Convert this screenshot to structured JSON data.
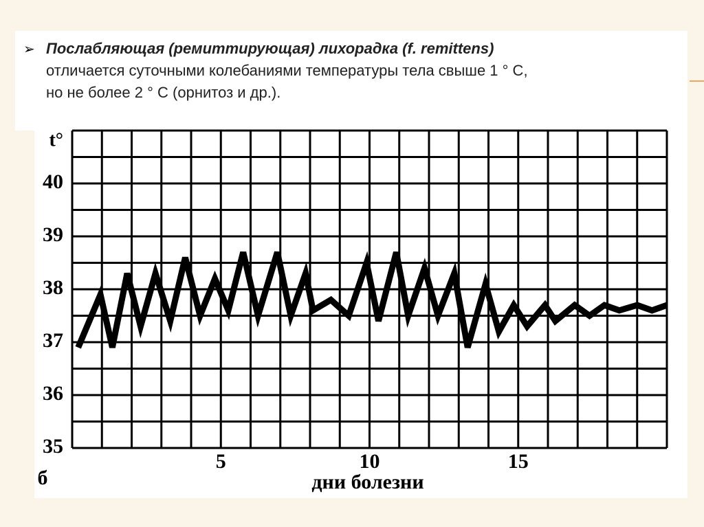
{
  "slide": {
    "bullet_title": "Послабляющая (ремиттирующая) лихорадка (f. remittens)",
    "bullet_lines": [
      "отличается суточными колебаниями температуры тела свыше 1 ° С,",
      "но не более 2 ° С (орнитоз и др.)."
    ]
  },
  "chart_data": {
    "type": "line",
    "y_label": "t°",
    "corner_text": "б",
    "x_label": "дни болезни",
    "x": [
      0.2,
      0.95,
      1.35,
      1.85,
      2.3,
      2.8,
      3.3,
      3.8,
      4.3,
      4.8,
      5.25,
      5.75,
      6.25,
      6.9,
      7.35,
      7.85,
      8.1,
      8.7,
      9.3,
      9.9,
      10.3,
      10.9,
      11.3,
      11.85,
      12.3,
      12.85,
      13.3,
      13.9,
      14.35,
      14.85,
      15.3,
      15.9,
      16.25,
      16.9,
      17.4,
      17.9,
      18.4,
      19.0,
      19.5,
      20.0
    ],
    "values": [
      36.9,
      37.9,
      36.9,
      38.3,
      37.3,
      38.3,
      37.4,
      38.6,
      37.5,
      38.2,
      37.6,
      38.7,
      37.5,
      38.7,
      37.5,
      38.3,
      37.6,
      37.8,
      37.5,
      38.5,
      37.4,
      38.7,
      37.5,
      38.4,
      37.5,
      38.3,
      36.9,
      38.1,
      37.2,
      37.7,
      37.3,
      37.7,
      37.4,
      37.7,
      37.5,
      37.7,
      37.6,
      37.7,
      37.6,
      37.7
    ],
    "color": "#000000",
    "xlim": [
      0,
      20
    ],
    "ylim": [
      35,
      41
    ],
    "xticks": [
      5,
      10,
      15
    ],
    "yticks": [
      35,
      36,
      37,
      38,
      39,
      40
    ],
    "xgrid": [
      0,
      1,
      2,
      3,
      4,
      5,
      6,
      7,
      8,
      9,
      10,
      11,
      12,
      13,
      14,
      15,
      16,
      17,
      18,
      19,
      20
    ],
    "ygrid": [
      35,
      35.5,
      36,
      36.5,
      37,
      37.5,
      38,
      38.5,
      39,
      39.5,
      40,
      40.5,
      41
    ]
  }
}
